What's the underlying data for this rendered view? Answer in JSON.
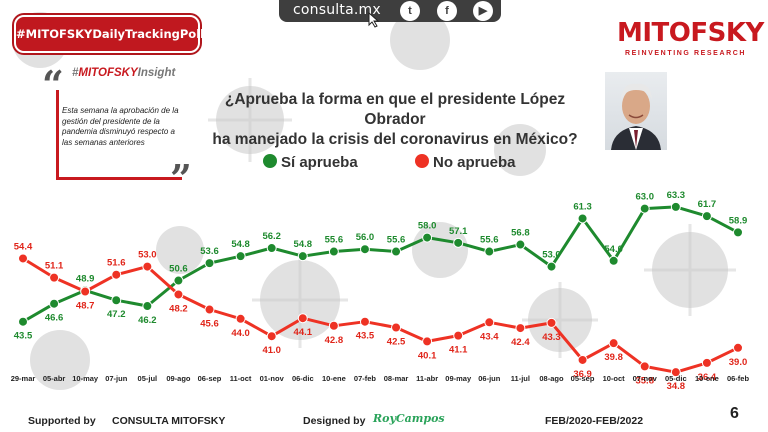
{
  "topbar": {
    "site": "consulta.mx",
    "icons": [
      "twitter-icon",
      "facebook-icon",
      "youtube-icon"
    ],
    "twitter_glyph": "t",
    "facebook_glyph": "f",
    "youtube_glyph": "▶"
  },
  "badge": {
    "label": "#MITOFSKYDailyTrackingPoll"
  },
  "logo": {
    "name": "MITOFSKY",
    "tagline": "REINVENTING RESEARCH"
  },
  "insight": {
    "title_prefix": "#",
    "title_brand": "MITOFSKY",
    "title_suffix": "Insight",
    "text": "Esta semana la aprobación de la gestión del presidente de la pandemia disminuyó respecto a las semanas anteriores"
  },
  "colors": {
    "approve": "#1e8a2e",
    "disapprove": "#ee3224",
    "brand": "#c8191f"
  },
  "chart_data": {
    "type": "line",
    "title": "¿Aprueba la forma en que el presidente López Obrador ha manejado la crisis del coronavirus en México?",
    "question_line1": "¿Aprueba la forma en que el presidente López Obrador",
    "question_line2": "ha manejado la crisis del coronavirus en México?",
    "xlabel": "",
    "ylabel": "",
    "grid": false,
    "legend_position": "top-left",
    "categories": [
      "29-mar",
      "05-abr",
      "10-may",
      "07-jun",
      "05-jul",
      "09-ago",
      "06-sep",
      "11-oct",
      "01-nov",
      "06-dic",
      "10-ene",
      "07-feb",
      "08-mar",
      "11-abr",
      "09-may",
      "06-jun",
      "11-jul",
      "08-ago",
      "05-sep",
      "10-oct",
      "07-nov",
      "05-dic",
      "10-ene",
      "06-feb"
    ],
    "ylim": [
      30,
      70
    ],
    "series": [
      {
        "name": "Sí aprueba",
        "color": "#1e8a2e",
        "values": [
          43.5,
          46.6,
          48.9,
          47.2,
          46.2,
          50.6,
          53.6,
          54.8,
          56.2,
          54.8,
          55.6,
          56.0,
          55.6,
          58.0,
          57.1,
          55.6,
          56.8,
          53.0,
          61.3,
          54.0,
          63.0,
          63.3,
          61.7,
          58.9
        ]
      },
      {
        "name": "No aprueba",
        "color": "#ee3224",
        "values": [
          54.4,
          51.1,
          48.7,
          51.6,
          53.0,
          48.2,
          45.6,
          44.0,
          41.0,
          44.1,
          42.8,
          43.5,
          42.5,
          40.1,
          41.1,
          43.4,
          42.4,
          43.3,
          36.9,
          39.8,
          35.8,
          34.8,
          36.4,
          39.0
        ]
      }
    ]
  },
  "footer": {
    "supported_by": "Supported by",
    "sponsor": "CONSULTA  MITOFSKY",
    "designed_by": "Designed by",
    "designer": "RoyCampos",
    "period": "FEB/2020-FEB/2022",
    "page": "6"
  }
}
